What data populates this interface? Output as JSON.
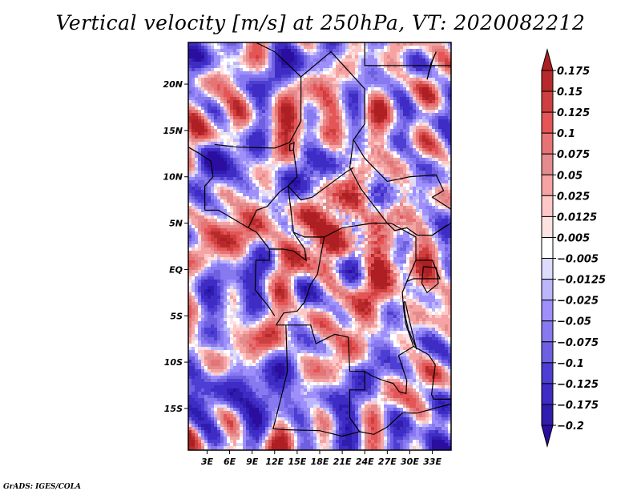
{
  "chart_data": {
    "type": "heatmap",
    "title": "Vertical velocity [m/s] at 250hPa, VT: 2020082212",
    "variable": "Vertical velocity",
    "units": "m/s",
    "level": "250hPa",
    "valid_time": "2020082212",
    "xlabel": "",
    "ylabel": "",
    "x_ticks": [
      "3E",
      "6E",
      "9E",
      "12E",
      "15E",
      "18E",
      "21E",
      "24E",
      "27E",
      "30E",
      "33E"
    ],
    "x_tick_values": [
      3,
      6,
      9,
      12,
      15,
      18,
      21,
      24,
      27,
      30,
      33
    ],
    "y_ticks": [
      "20N",
      "15N",
      "10N",
      "5N",
      "EQ",
      "5S",
      "10S",
      "15S"
    ],
    "y_tick_values": [
      20,
      15,
      10,
      5,
      0,
      -5,
      -10,
      -15
    ],
    "xlim": [
      0.5,
      35.5
    ],
    "ylim": [
      -19.5,
      24.5
    ],
    "grid": false,
    "colorbar": {
      "placement": "right",
      "extend": "both",
      "levels": [
        0.175,
        0.15,
        0.125,
        0.1,
        0.075,
        0.05,
        0.025,
        0.0125,
        0.005,
        -0.005,
        -0.0125,
        -0.025,
        -0.05,
        -0.075,
        -0.1,
        -0.125,
        -0.175,
        -0.2
      ],
      "labels": [
        "0.175",
        "0.15",
        "0.125",
        "0.1",
        "0.075",
        "0.05",
        "0.025",
        "0.0125",
        "0.005",
        "−0.005",
        "−0.0125",
        "−0.025",
        "−0.05",
        "−0.075",
        "−0.1",
        "−0.125",
        "−0.175",
        "−0.2"
      ],
      "top_extend_color": "#ad1f22",
      "bottom_extend_color": "#2b0ea0",
      "box_colors": [
        "#b72a2b",
        "#ce3f40",
        "#e55556",
        "#e77475",
        "#e38b8d",
        "#f5a3a3",
        "#fec8c8",
        "#fde2e2",
        "#ffffff",
        "#dddcfc",
        "#bcb6fb",
        "#9f8ffb",
        "#8779ef",
        "#6e60e0",
        "#4d3ed4",
        "#3f2cc4",
        "#2f1daf"
      ]
    },
    "description": "Regional map of Central Africa (approx. 0.5E-35.5E, 19.5S-24.5N) with filled contours of vertical velocity; strong positive (red) values over central Africa/Congo basin and Sahel, negative (blue) values over the Atlantic and southern Africa; country borders drawn in black."
  },
  "footer": "GrADS: IGES/COLA"
}
